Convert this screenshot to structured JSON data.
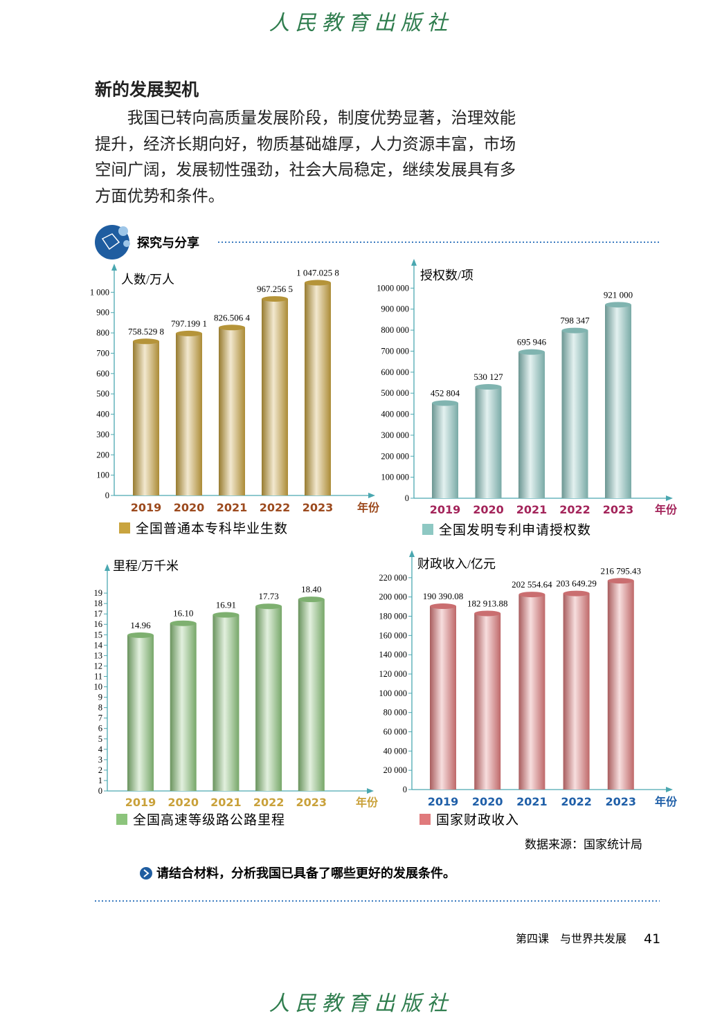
{
  "header": {
    "publisher": "人民教育出版社"
  },
  "section": {
    "title": "新的发展契机",
    "paragraph": "我国已转向高质量发展阶段，制度优势显著，治理效能提升，经济长期向好，物质基础雄厚，人力资源丰富，市场空间广阔，发展韧性强劲，社会大局稳定，继续发展具有多方面优势和条件。"
  },
  "activity": {
    "title": "探究与分享"
  },
  "chart_data": [
    {
      "type": "bar",
      "y_label": "人数/万人",
      "x_label": "年份",
      "categories": [
        "2019",
        "2020",
        "2021",
        "2022",
        "2023"
      ],
      "category_color": "#9c4a1e",
      "series": [
        {
          "name": "全国普通本专科毕业生数",
          "color": "#c9a43f",
          "values": [
            758.5298,
            797.1991,
            826.5064,
            967.2565,
            1047.0258
          ],
          "value_labels": [
            "758.529 8",
            "797.199 1",
            "826.506 4",
            "967.256 5",
            "1 047.025 8"
          ]
        }
      ],
      "ylim": [
        0,
        1100
      ],
      "yticks": [
        0,
        100,
        200,
        300,
        400,
        500,
        600,
        700,
        800,
        900,
        {
          "value": 1000,
          "label": "1 000"
        }
      ]
    },
    {
      "type": "bar",
      "y_label": "授权数/项",
      "x_label": "年份",
      "categories": [
        "2019",
        "2020",
        "2021",
        "2022",
        "2023"
      ],
      "category_color": "#a3245a",
      "series": [
        {
          "name": "全国发明专利申请授权数",
          "color": "#8ec8c3",
          "values": [
            452804,
            530127,
            695946,
            798347,
            921000
          ],
          "value_labels": [
            "452 804",
            "530 127",
            "695 946",
            "798 347",
            "921 000"
          ]
        }
      ],
      "ylim": [
        0,
        1100000
      ],
      "yticks": [
        0,
        {
          "value": 100000,
          "label": "100 000"
        },
        {
          "value": 200000,
          "label": "200 000"
        },
        {
          "value": 300000,
          "label": "300 000"
        },
        {
          "value": 400000,
          "label": "400 000"
        },
        {
          "value": 500000,
          "label": "500 000"
        },
        {
          "value": 600000,
          "label": "600 000"
        },
        {
          "value": 700000,
          "label": "700 000"
        },
        {
          "value": 800000,
          "label": "800 000"
        },
        {
          "value": 900000,
          "label": "900 000"
        },
        {
          "value": 1000000,
          "label": "1000 000"
        }
      ]
    },
    {
      "type": "bar",
      "y_label": "里程/万千米",
      "x_label": "年份",
      "categories": [
        "2019",
        "2020",
        "2021",
        "2022",
        "2023"
      ],
      "category_color": "#c9a13a",
      "series": [
        {
          "name": "全国高速等级路公路里程",
          "color": "#8cc47c",
          "values": [
            14.96,
            16.1,
            16.91,
            17.73,
            18.4
          ],
          "value_labels": [
            "14.96",
            "16.10",
            "16.91",
            "17.73",
            "18.40"
          ]
        }
      ],
      "ylim": [
        0,
        21
      ],
      "yticks": [
        0,
        1,
        2,
        3,
        4,
        5,
        6,
        7,
        8,
        9,
        10,
        11,
        12,
        13,
        14,
        15,
        16,
        17,
        18,
        19
      ]
    },
    {
      "type": "bar",
      "y_label": "财政收入/亿元",
      "x_label": "年份",
      "categories": [
        "2019",
        "2020",
        "2021",
        "2022",
        "2023"
      ],
      "category_color": "#1f5fa8",
      "series": [
        {
          "name": "国家财政收入",
          "color": "#e07a7c",
          "values": [
            190390.08,
            182913.88,
            202554.64,
            203649.29,
            216795.43
          ],
          "value_labels": [
            "190 390.08",
            "182 913.88",
            "202 554.64",
            "203 649.29",
            "216 795.43"
          ]
        }
      ],
      "ylim": [
        0,
        240000
      ],
      "yticks": [
        0,
        {
          "value": 20000,
          "label": "20 000"
        },
        {
          "value": 40000,
          "label": "40 000"
        },
        {
          "value": 60000,
          "label": "60 000"
        },
        {
          "value": 80000,
          "label": "80 000"
        },
        {
          "value": 100000,
          "label": "100 000"
        },
        {
          "value": 120000,
          "label": "120 000"
        },
        {
          "value": 140000,
          "label": "140 000"
        },
        {
          "value": 160000,
          "label": "160 000"
        },
        {
          "value": 180000,
          "label": "180 000"
        },
        {
          "value": 200000,
          "label": "200 000"
        },
        {
          "value": 220000,
          "label": "220 000"
        }
      ]
    }
  ],
  "source": "数据来源：国家统计局",
  "question": "请结合材料，分析我国已具备了哪些更好的发展条件。",
  "footer": {
    "lesson": "第四课　与世界共发展",
    "page": "41",
    "publisher": "人民教育出版社"
  }
}
